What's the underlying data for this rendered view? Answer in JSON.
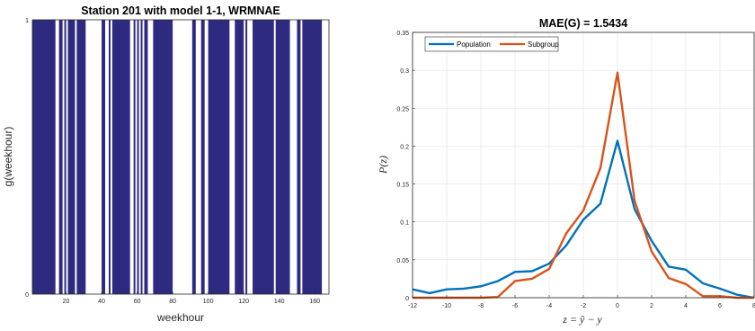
{
  "chart_data": [
    {
      "type": "bar",
      "title": "Station 201 with model 1-1, WRMNAE",
      "xlabel": "weekhour",
      "ylabel": "g(weekhour)",
      "xlim": [
        1,
        168
      ],
      "ylim": [
        0,
        1
      ],
      "xticks": [
        "20",
        "40",
        "60",
        "80",
        "100",
        "120",
        "140",
        "160"
      ],
      "xtick_values": [
        20,
        40,
        60,
        80,
        100,
        120,
        140,
        160
      ],
      "yticks": [
        "0",
        "1"
      ],
      "ytick_values": [
        0,
        1
      ],
      "bar_color": "#2e2a80",
      "grid": false,
      "active_ranges": [
        [
          1,
          14
        ],
        [
          16,
          18
        ],
        [
          19,
          20
        ],
        [
          21,
          25
        ],
        [
          26,
          31
        ],
        [
          40,
          42
        ],
        [
          44,
          45
        ],
        [
          46,
          56
        ],
        [
          58,
          59
        ],
        [
          60,
          61
        ],
        [
          62,
          63
        ],
        [
          64,
          66
        ],
        [
          69,
          80
        ],
        [
          91,
          93
        ],
        [
          96,
          98
        ],
        [
          100,
          112
        ],
        [
          115,
          120
        ],
        [
          121,
          122
        ],
        [
          125,
          137
        ],
        [
          138,
          146
        ],
        [
          150,
          152
        ],
        [
          153,
          164
        ]
      ]
    },
    {
      "type": "line",
      "title": "MAE(G) = 1.5434",
      "xlabel": "z = ŷ − y",
      "ylabel": "P(z)",
      "xlim": [
        -12,
        8
      ],
      "ylim": [
        0,
        0.35
      ],
      "xticks": [
        "-12",
        "-10",
        "-8",
        "-6",
        "-4",
        "-2",
        "0",
        "2",
        "4",
        "6",
        "8"
      ],
      "xtick_values": [
        -12,
        -10,
        -8,
        -6,
        -4,
        -2,
        0,
        2,
        4,
        6,
        8
      ],
      "yticks": [
        "0",
        "0.05",
        "0.1",
        "0.15",
        "0.2",
        "0.25",
        "0.3",
        "0.35"
      ],
      "ytick_values": [
        0,
        0.05,
        0.1,
        0.15,
        0.2,
        0.25,
        0.3,
        0.35
      ],
      "grid": true,
      "legend": "top-left",
      "x": [
        -12,
        -11,
        -10,
        -9,
        -8,
        -7,
        -6,
        -5,
        -4,
        -3,
        -2,
        -1,
        0,
        1,
        2,
        3,
        4,
        5,
        6,
        7,
        8
      ],
      "series": [
        {
          "name": "Population",
          "color": "#0072bd",
          "values": [
            0.011,
            0.006,
            0.011,
            0.012,
            0.015,
            0.022,
            0.034,
            0.035,
            0.045,
            0.069,
            0.103,
            0.124,
            0.207,
            0.117,
            0.075,
            0.041,
            0.037,
            0.019,
            0.012,
            0.004,
            0.0
          ]
        },
        {
          "name": "Subgroup",
          "color": "#d95319",
          "values": [
            0.0,
            0.0,
            0.0,
            0.0,
            0.0,
            0.001,
            0.022,
            0.025,
            0.038,
            0.085,
            0.115,
            0.171,
            0.297,
            0.128,
            0.061,
            0.026,
            0.018,
            0.002,
            0.002,
            0.0,
            0.0
          ]
        }
      ]
    }
  ]
}
